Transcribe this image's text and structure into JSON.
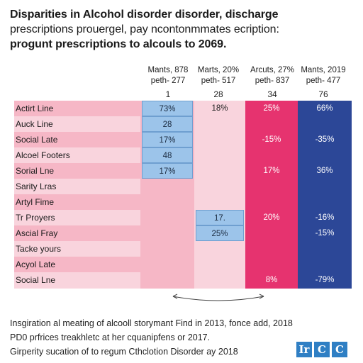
{
  "title": {
    "line1": "Disparities in Alcohol disorder disorder, discharge",
    "line2": "prescriptions prouergel, pay ncontonmmates ecription:",
    "line3": "progunt prescriptions to alcouls to 2069."
  },
  "chart_data": {
    "type": "table",
    "columns": [
      {
        "line1": "Mants, 878",
        "line2": "peth- 277",
        "number": "1",
        "color": "#f6b7c6"
      },
      {
        "line1": "Marts, 20%",
        "line2": "peth- 517",
        "number": "28",
        "color": "#f9d4dd"
      },
      {
        "line1": "Arcuts, 27%",
        "line2": "peth- 837",
        "number": "34",
        "color": "#e6336f"
      },
      {
        "line1": "Mants, 2019",
        "line2": "peth- 477",
        "number": "76",
        "color": "#2c4797"
      }
    ],
    "rows": [
      {
        "label": "Actirt Line",
        "cells": [
          "73%",
          "18%",
          "25%",
          "66%"
        ]
      },
      {
        "label": "Auck Line",
        "cells": [
          "28",
          "",
          "",
          ""
        ]
      },
      {
        "label": "Social Late",
        "cells": [
          "17%",
          "",
          "-15%",
          "-35%"
        ]
      },
      {
        "label": "Alcoel Footers",
        "cells": [
          "48",
          "",
          "",
          ""
        ]
      },
      {
        "label": "Sorial Lne",
        "cells": [
          "17%",
          "",
          "17%",
          "36%"
        ]
      },
      {
        "label": "Sarity Lras",
        "cells": [
          "",
          "",
          "",
          ""
        ]
      },
      {
        "label": "Artyl Fime",
        "cells": [
          "",
          "",
          "",
          ""
        ]
      },
      {
        "label": "Tr Proyers",
        "cells": [
          "",
          "17.",
          "20%",
          "-16%"
        ]
      },
      {
        "label": "Ascial Fray",
        "cells": [
          "",
          "25%",
          "",
          "-15%"
        ]
      },
      {
        "label": "Tacke yours",
        "cells": [
          "",
          "",
          "",
          ""
        ]
      },
      {
        "label": "Acyol Late",
        "cells": [
          "",
          "",
          "",
          ""
        ]
      },
      {
        "label": "Social Lne",
        "cells": [
          "",
          "",
          "8%",
          "-79%"
        ]
      }
    ],
    "blue_cells": [
      [
        0,
        0
      ],
      [
        1,
        0
      ],
      [
        2,
        0
      ],
      [
        3,
        0
      ],
      [
        4,
        0
      ],
      [
        7,
        1
      ],
      [
        8,
        1
      ]
    ]
  },
  "notes": {
    "line1": "Insgiration al meating of alcooll storymant Find in 2013, fonce add, 2018",
    "line2": "PD0 prfrices treakhletc at her cquanipfens or 2017.",
    "line3": "Girperity sucation of to regum Cthclotion Disorder ay 2018"
  },
  "logo": [
    "Ir",
    "C",
    "C"
  ]
}
